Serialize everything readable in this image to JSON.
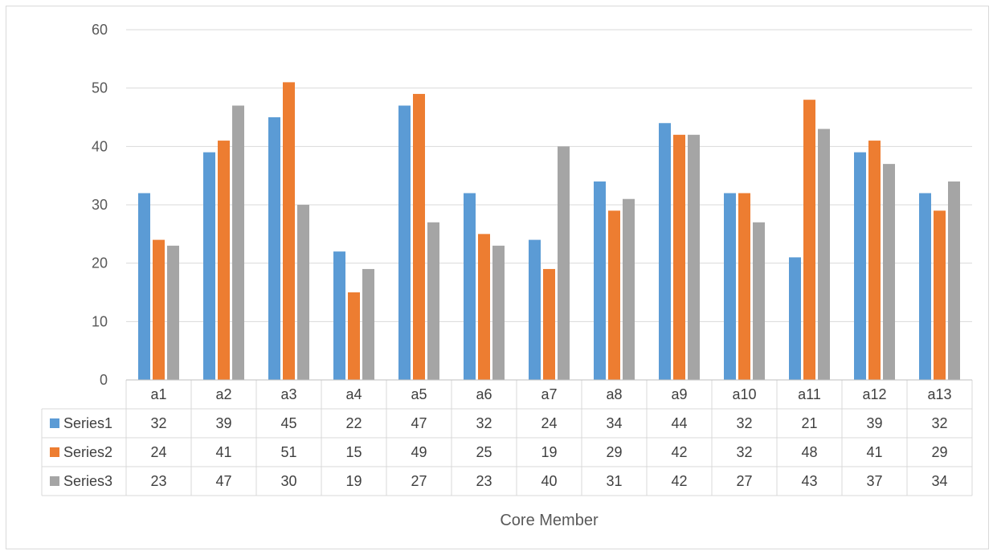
{
  "chart_data": {
    "type": "bar",
    "title": "",
    "xlabel": "Core Member",
    "ylabel": "",
    "ylim": [
      0,
      60
    ],
    "yticks": [
      0,
      10,
      20,
      30,
      40,
      50,
      60
    ],
    "grid": true,
    "legend": "data-table",
    "categories": [
      "a1",
      "a2",
      "a3",
      "a4",
      "a5",
      "a6",
      "a7",
      "a8",
      "a9",
      "a10",
      "a11",
      "a12",
      "a13"
    ],
    "series": [
      {
        "name": "Series1",
        "color": "#5b9bd5",
        "values": [
          32,
          39,
          45,
          22,
          47,
          32,
          24,
          34,
          44,
          32,
          21,
          39,
          32
        ]
      },
      {
        "name": "Series2",
        "color": "#ed7d31",
        "values": [
          24,
          41,
          51,
          15,
          49,
          25,
          19,
          29,
          42,
          32,
          48,
          41,
          29
        ]
      },
      {
        "name": "Series3",
        "color": "#a5a5a5",
        "values": [
          23,
          47,
          30,
          19,
          27,
          23,
          40,
          31,
          42,
          27,
          43,
          37,
          34
        ]
      }
    ]
  }
}
